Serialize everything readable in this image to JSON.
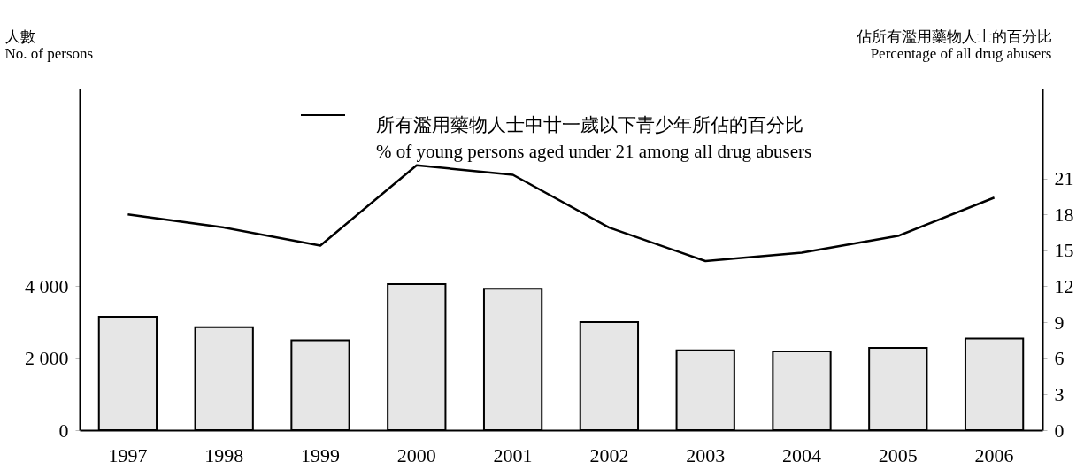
{
  "chart_data": {
    "type": "bar",
    "ylabel": "人數\nNo. of persons",
    "y2label": "佔所有濫用藥物人士的百分比\nPercentage of all drug abusers",
    "categories": [
      "1997",
      "1998",
      "1999",
      "2000",
      "2001",
      "2002",
      "2003",
      "2004",
      "2005",
      "2006"
    ],
    "series": [
      {
        "color": "#e6e6e6",
        "values": [
          3150,
          2860,
          2500,
          4060,
          3930,
          3000,
          2220,
          2190,
          2290,
          2550
        ]
      },
      {
        "type": "line",
        "axis": "y2",
        "name": "所有濫用藥物人士中廿一歲以下青少年所佔的百分比\n% of young persons aged under 21 among all drug abusers",
        "color": "#000000",
        "values": [
          18.0,
          16.9,
          15.4,
          22.1,
          21.3,
          16.9,
          14.1,
          14.8,
          16.2,
          19.4
        ]
      }
    ],
    "ylim": [
      0,
      9500
    ],
    "yticks": [
      0,
      {
        "value": 2000,
        "label": "2 000"
      },
      {
        "value": 4000,
        "label": "4 000"
      }
    ],
    "y2lim": [
      0,
      28.5
    ],
    "y2ticks": [
      0,
      3,
      6,
      9,
      12,
      15,
      18,
      21
    ],
    "grid": false,
    "legend": "top",
    "line_style": "solid",
    "marker": "none"
  }
}
